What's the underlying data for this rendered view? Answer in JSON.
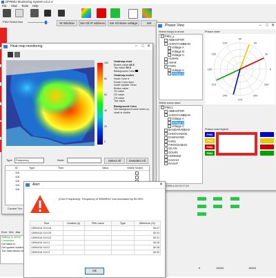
{
  "main": {
    "title": "DFRMU Monitoring System v3.2.4",
    "menu": [
      "File",
      "View",
      "Tools",
      "Help"
    ],
    "toolbar2": {
      "source": "PMU Select Bus",
      "btn_window": "W Window",
      "btn_ip": "Set rtd IP address",
      "btn_voltage": "Set rtd Base voltage",
      "btn_set": "Set"
    },
    "left_log": [
      "Waiting to server:",
      "Connected",
      "Get latest m",
      "Get system loaded",
      "The data stream sta"
    ],
    "left_tabs": [
      "Evnt",
      "Mxt",
      "Alar"
    ]
  },
  "map_window": {
    "title": "Heat map monitoring",
    "colorbar_labels": [
      "100",
      "80",
      "60",
      "40",
      "20",
      "0"
    ],
    "panel": {
      "heatmap_chart_title": "Heatmap chart",
      "heatmap_chart_rows": [
        {
          "label": "Button value",
          "value": "49.5"
        },
        {
          "label": "Top value",
          "value": "50.3"
        }
      ],
      "background_color_label": "Background Color",
      "heatmap_modes_title": "Heatmap modes",
      "modes": [
        {
          "label": "Node Color",
          "value": "#"
        },
        {
          "label": "Route Color",
          "value": "AscL"
        },
        {
          "label": "Node Update",
          "value": "Timer"
        },
        {
          "label": "Button value",
          "value": ""
        },
        {
          "label": "G1 value",
          "value": ""
        },
        {
          "label": "G2 value",
          "value": ""
        },
        {
          "label": "G3 value",
          "value": ""
        },
        {
          "label": "Top value",
          "value": ""
        }
      ],
      "background_title": "Background Color",
      "background_note": "Set background color when no chart is visible"
    },
    "type_label": "Type",
    "type_value": "Frequency",
    "node_label": "Node",
    "btn_select_all": "Select All",
    "btn_deselect_all": "Deselect All",
    "table_headers": [
      "ID",
      "Type",
      "Time",
      "Value",
      "Visible Nodes"
    ],
    "table_ids": [
      "116",
      "116",
      "116",
      "116",
      "116"
    ],
    "current_time_label": "Current Tim"
  },
  "phasor_window": {
    "title": "Phasor View",
    "select_label": "Select bus(s) to show:",
    "tree": [
      {
        "text": "PMUف",
        "indent": 0,
        "selected": false
      },
      {
        "text": "ABBASPOR",
        "indent": 1,
        "selected": false
      },
      {
        "text": "AHOOYANBBAN",
        "indent": 1,
        "selected": false
      },
      {
        "text": "Voltage A",
        "indent": 2,
        "selected": false
      },
      {
        "text": "Voltage B",
        "indent": 2,
        "selected": false
      },
      {
        "text": "Voltage C",
        "indent": 2,
        "selected": false
      },
      {
        "text": "ALMAN",
        "indent": 1,
        "selected": false
      },
      {
        "text": "ANAR",
        "indent": 1,
        "selected": false
      },
      {
        "text": "FARS",
        "indent": 1,
        "selected": false
      },
      {
        "text": "Voltage A",
        "indent": 2,
        "selected": false
      },
      {
        "text": "Voltage B",
        "indent": 2,
        "selected": true
      }
    ],
    "phasor_chart_label": "Phasor chart",
    "polar_labels": [
      "90",
      "60",
      "30",
      "0",
      "330",
      "300",
      "270",
      "240",
      "210",
      "180",
      "150",
      "120"
    ],
    "select_colors_label": "Select colors base:",
    "tree2": [
      {
        "text": "PMU1",
        "indent": 0,
        "selected": false
      },
      {
        "text": "ABBASPOR",
        "indent": 1,
        "selected": false
      },
      {
        "text": "AHOOYANBBAN",
        "indent": 1,
        "selected": false
      },
      {
        "text": "Voltage A",
        "indent": 2,
        "selected": false
      },
      {
        "text": "Voltage B",
        "indent": 2,
        "selected": true
      },
      {
        "text": "Voltage C",
        "indent": 2,
        "selected": false
      },
      {
        "text": "BANDARABBAS",
        "indent": 1,
        "selected": false
      },
      {
        "text": "CHOGHADOK",
        "indent": 1,
        "selected": false
      },
      {
        "text": "DAMAVAND",
        "indent": 1,
        "selected": false
      },
      {
        "text": "FARS",
        "indent": 1,
        "selected": false
      },
      {
        "text": "FIROOZABAD",
        "indent": 1,
        "selected": false
      },
      {
        "text": "GILAN",
        "indent": 1,
        "selected": false
      },
      {
        "text": "GOURI",
        "indent": 1,
        "selected": false
      },
      {
        "text": "HORMOZ",
        "indent": 1,
        "selected": false
      },
      {
        "text": "KAVIAH",
        "indent": 1,
        "selected": false
      },
      {
        "text": "RASHT",
        "indent": 1,
        "selected": false
      }
    ],
    "legend_title": "Phasor chart legend",
    "legend": [
      {
        "label": "PMU",
        "color": "#0000cc"
      },
      {
        "label": "PMU",
        "color": "#e6c800"
      },
      {
        "label": "PMU",
        "color": "#cc0000"
      },
      {
        "label": "PMU",
        "color": "#00a000"
      }
    ],
    "status_time": "Time: 1399-4-16 13:17:15",
    "bottom_values": [
      "0",
      "15000",
      "15000"
    ]
  },
  "alert_dialog": {
    "title": "Alert",
    "message": "(Over Frequency): Frequency of 'BSMRHZ' bus increased by 50.05%",
    "headers": [
      "Time",
      "Duration (s)",
      "PMU name",
      "Type",
      "Difference (%)"
    ],
    "rows": [
      {
        "time": "1399/4/16 13:0:25",
        "diff": "50.07"
      },
      {
        "time": "1399/4/16 13:0:25",
        "diff": "50.23"
      },
      {
        "time": "1399/4/16 13:0:23",
        "diff": "50.21"
      },
      {
        "time": "1399/4/16 13:0:3",
        "diff": "50.25"
      },
      {
        "time": "1399/4/16 13:0:2",
        "diff": "50.28"
      },
      {
        "time": "1399/4/16 13:0:3",
        "diff": "50.20"
      }
    ],
    "ok_label": "Ok"
  },
  "colors": {
    "red_tile": "#e52121",
    "selection": "#3399ff",
    "dialog_title_bg": "#ffffff"
  }
}
